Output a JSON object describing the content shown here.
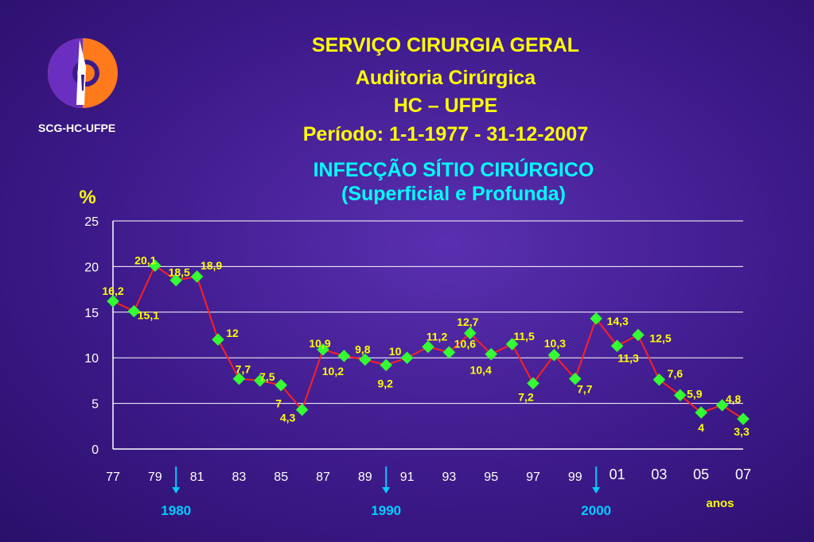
{
  "logo": {
    "caption": "SCG-HC-UFPE",
    "icon": "scalpel-emblem-icon"
  },
  "header": {
    "line1": "SERVIÇO  CIRURGIA  GERAL",
    "line2": "Auditoria  Cirúrgica",
    "line3": "HC – UFPE",
    "line4": "Período:  1-1-1977   -   31-12-2007"
  },
  "chart_title": {
    "line1": "INFECÇÃO  SÍTIO  CIRÚRGICO",
    "line2": "(Superficial  e  Profunda)"
  },
  "chart_data": {
    "type": "line",
    "ylabel": "%",
    "xlabel": "anos",
    "ylim": [
      0,
      25
    ],
    "yticks": [
      "0",
      "5",
      "10",
      "15",
      "20",
      "25"
    ],
    "grid": true,
    "x": [
      1977,
      1978,
      1979,
      1980,
      1981,
      1982,
      1983,
      1984,
      1985,
      1986,
      1987,
      1988,
      1989,
      1990,
      1991,
      1992,
      1993,
      1994,
      1995,
      1996,
      1997,
      1998,
      1999,
      2000,
      2001,
      2002,
      2003,
      2004,
      2005,
      2006,
      2007
    ],
    "values": [
      16.2,
      15.1,
      20.1,
      18.5,
      18.9,
      12,
      7.7,
      7.5,
      7,
      4.3,
      10.9,
      10.2,
      9.8,
      9.2,
      10,
      11.2,
      10.6,
      12.7,
      10.4,
      11.5,
      7.2,
      10.3,
      7.7,
      14.3,
      11.3,
      12.5,
      7.6,
      5.9,
      4,
      4.8,
      3.3
    ],
    "data_labels": [
      "16,2",
      "15,1",
      "20,1",
      "18,5",
      "18,9",
      "12",
      "7,7",
      "7,5",
      "7",
      "4,3",
      "10,9",
      "10,2",
      "9,8",
      "9,2",
      "10",
      "11,2",
      "10,6",
      "12,7",
      "10,4",
      "11,5",
      "7,2",
      "10,3",
      "7,7",
      "14,3",
      "11,3",
      "12,5",
      "7,6",
      "5,9",
      "4",
      "4,8",
      "3,3"
    ],
    "xtick_labels": [
      {
        "x": 1977,
        "label": "77"
      },
      {
        "x": 1979,
        "label": "79"
      },
      {
        "x": 1981,
        "label": "81"
      },
      {
        "x": 1983,
        "label": "83"
      },
      {
        "x": 1985,
        "label": "85"
      },
      {
        "x": 1987,
        "label": "87"
      },
      {
        "x": 1989,
        "label": "89"
      },
      {
        "x": 1991,
        "label": "91"
      },
      {
        "x": 1993,
        "label": "93"
      },
      {
        "x": 1995,
        "label": "95"
      },
      {
        "x": 1997,
        "label": "97"
      },
      {
        "x": 1999,
        "label": "99"
      },
      {
        "x": 2001,
        "label": "01"
      },
      {
        "x": 2003,
        "label": "03"
      },
      {
        "x": 2005,
        "label": "05"
      },
      {
        "x": 2007,
        "label": "07"
      }
    ],
    "decade_markers": [
      {
        "x": 1980,
        "label": "1980"
      },
      {
        "x": 1990,
        "label": "1990"
      },
      {
        "x": 2000,
        "label": "2000"
      }
    ],
    "colors": {
      "line": "#ff2020",
      "marker": "#33ff33",
      "label": "#ffff00",
      "marker_label": "#ffff00",
      "axis": "#ffffff",
      "decade": "#00ccff"
    }
  }
}
